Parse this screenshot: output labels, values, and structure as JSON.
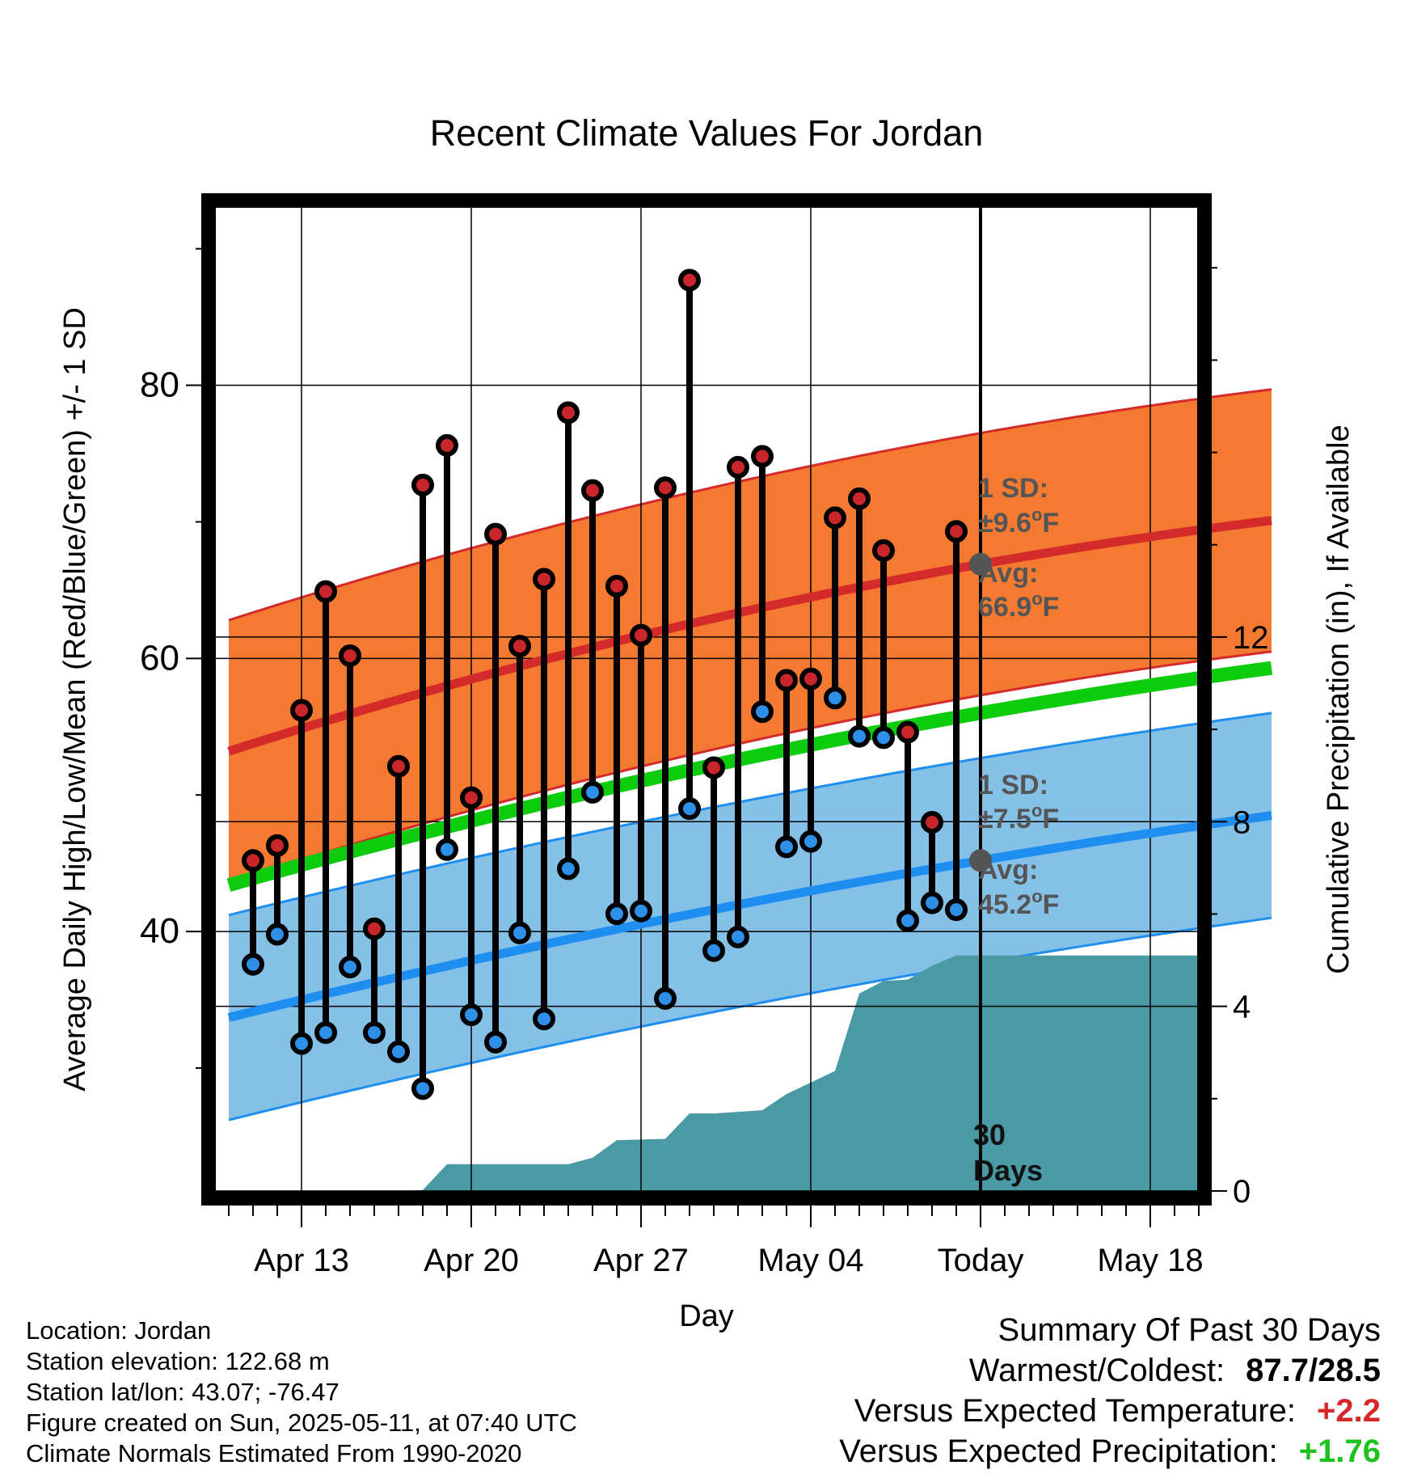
{
  "title": "Recent Climate Values For Jordan",
  "axes": {
    "xlabel": "Day",
    "ylabel_left": "Average Daily High/Low/Mean (Red/Blue/Green) +/- 1 SD",
    "ylabel_right": "Cumulative Precipitation (in), If Available",
    "x_tick_labels": [
      "Apr 13",
      "Apr 20",
      "Apr 27",
      "May 04",
      "Today",
      "May 18"
    ],
    "y_left_ticks": [
      "40",
      "60",
      "80"
    ],
    "y_right_ticks": [
      "0",
      "4",
      "8",
      "12"
    ]
  },
  "annotations": {
    "high_sd_label": "1 SD:",
    "high_sd_value": "±9.6",
    "high_avg_label": "Avg:",
    "high_avg_value": "66.9",
    "low_sd_label": "1 SD:",
    "low_sd_value": "±7.5",
    "low_avg_label": "Avg:",
    "low_avg_value": "45.2",
    "degree_unit": "F",
    "days_label_1": "30",
    "days_label_2": "Days"
  },
  "colors": {
    "high_band": "#f47a32",
    "high_line": "#d42a2a",
    "low_band": "#85c1e7",
    "low_line": "#1f8ef1",
    "mean_line": "#0dcb0d",
    "precip": "#4a9aa5",
    "high_dot": "#c8262a",
    "low_dot": "#2e8fe8",
    "avg_marker": "#555555",
    "annotation_text": "#555555"
  },
  "chart_data": {
    "type": "line",
    "x_axis": {
      "type": "date",
      "min": "2025-04-09",
      "max": "2025-05-24",
      "today": "2025-05-11"
    },
    "y_left": {
      "min": 21,
      "max": 93
    },
    "y_right": {
      "min": 0,
      "max": 21.3
    },
    "grid": true,
    "normals": {
      "high_avg": [
        {
          "date": "2025-04-10",
          "value": 53.2
        },
        {
          "date": "2025-05-11",
          "value": 66.9
        },
        {
          "date": "2025-05-23",
          "value": 70.1
        }
      ],
      "high_sd": 9.6,
      "low_avg": [
        {
          "date": "2025-04-10",
          "value": 33.7
        },
        {
          "date": "2025-05-11",
          "value": 45.2
        },
        {
          "date": "2025-05-23",
          "value": 48.5
        }
      ],
      "low_sd": 7.5,
      "mean_avg": [
        {
          "date": "2025-04-10",
          "value": 43.4
        },
        {
          "date": "2025-05-11",
          "value": 56.0
        },
        {
          "date": "2025-05-23",
          "value": 59.3
        }
      ]
    },
    "observed": [
      {
        "date": "2025-04-11",
        "high": 45.2,
        "low": 37.6
      },
      {
        "date": "2025-04-12",
        "high": 46.3,
        "low": 39.8
      },
      {
        "date": "2025-04-13",
        "high": 56.2,
        "low": 31.8
      },
      {
        "date": "2025-04-14",
        "high": 64.9,
        "low": 32.6
      },
      {
        "date": "2025-04-15",
        "high": 60.2,
        "low": 37.4
      },
      {
        "date": "2025-04-16",
        "high": 40.2,
        "low": 32.6
      },
      {
        "date": "2025-04-17",
        "high": 52.1,
        "low": 31.2
      },
      {
        "date": "2025-04-18",
        "high": 72.7,
        "low": 28.5
      },
      {
        "date": "2025-04-19",
        "high": 75.6,
        "low": 46.0
      },
      {
        "date": "2025-04-20",
        "high": 49.8,
        "low": 33.9
      },
      {
        "date": "2025-04-21",
        "high": 69.1,
        "low": 31.9
      },
      {
        "date": "2025-04-22",
        "high": 60.9,
        "low": 39.9
      },
      {
        "date": "2025-04-23",
        "high": 65.8,
        "low": 33.6
      },
      {
        "date": "2025-04-24",
        "high": 78.0,
        "low": 44.6
      },
      {
        "date": "2025-04-25",
        "high": 72.3,
        "low": 50.2
      },
      {
        "date": "2025-04-26",
        "high": 65.3,
        "low": 41.3
      },
      {
        "date": "2025-04-27",
        "high": 61.7,
        "low": 41.5
      },
      {
        "date": "2025-04-28",
        "high": 72.5,
        "low": 35.1
      },
      {
        "date": "2025-04-29",
        "high": 87.7,
        "low": 49.0
      },
      {
        "date": "2025-04-30",
        "high": 52.0,
        "low": 38.6
      },
      {
        "date": "2025-05-01",
        "high": 74.0,
        "low": 39.6
      },
      {
        "date": "2025-05-02",
        "high": 74.8,
        "low": 56.1
      },
      {
        "date": "2025-05-03",
        "high": 58.4,
        "low": 46.2
      },
      {
        "date": "2025-05-04",
        "high": 58.5,
        "low": 46.6
      },
      {
        "date": "2025-05-05",
        "high": 70.3,
        "low": 57.1
      },
      {
        "date": "2025-05-06",
        "high": 71.7,
        "low": 54.3
      },
      {
        "date": "2025-05-07",
        "high": 67.9,
        "low": 54.2
      },
      {
        "date": "2025-05-08",
        "high": 54.6,
        "low": 40.8
      },
      {
        "date": "2025-05-09",
        "high": 48.0,
        "low": 42.1
      },
      {
        "date": "2025-05-10",
        "high": 69.3,
        "low": 41.6
      }
    ],
    "cumulative_precip": [
      {
        "date": "2025-04-17",
        "value": 0
      },
      {
        "date": "2025-04-18",
        "value": 0.02
      },
      {
        "date": "2025-04-19",
        "value": 0.58
      },
      {
        "date": "2025-04-24",
        "value": 0.58
      },
      {
        "date": "2025-04-25",
        "value": 0.72
      },
      {
        "date": "2025-04-26",
        "value": 1.1
      },
      {
        "date": "2025-04-28",
        "value": 1.13
      },
      {
        "date": "2025-04-29",
        "value": 1.68
      },
      {
        "date": "2025-04-30",
        "value": 1.68
      },
      {
        "date": "2025-05-02",
        "value": 1.75
      },
      {
        "date": "2025-05-03",
        "value": 2.1
      },
      {
        "date": "2025-05-05",
        "value": 2.6
      },
      {
        "date": "2025-05-06",
        "value": 4.28
      },
      {
        "date": "2025-05-07",
        "value": 4.55
      },
      {
        "date": "2025-05-08",
        "value": 4.58
      },
      {
        "date": "2025-05-09",
        "value": 4.88
      },
      {
        "date": "2025-05-10",
        "value": 5.1
      },
      {
        "date": "2025-05-23",
        "value": 5.1
      }
    ]
  },
  "footer": {
    "location": "Location: Jordan",
    "elevation": "Station elevation: 122.68 m",
    "latlon": "Station lat/lon: 43.07; -76.47",
    "created": "Figure created on Sun, 2025-05-11, at 07:40 UTC",
    "normals": "Climate Normals Estimated From 1990-2020"
  },
  "summary": {
    "title": "Summary Of Past 30 Days",
    "warm_cold_label": "Warmest/Coldest:",
    "warm_cold_value": "87.7/28.5",
    "temp_label": "Versus Expected Temperature:",
    "temp_value": "+2.2",
    "precip_label": "Versus Expected Precipitation:",
    "precip_value": "+1.76"
  }
}
